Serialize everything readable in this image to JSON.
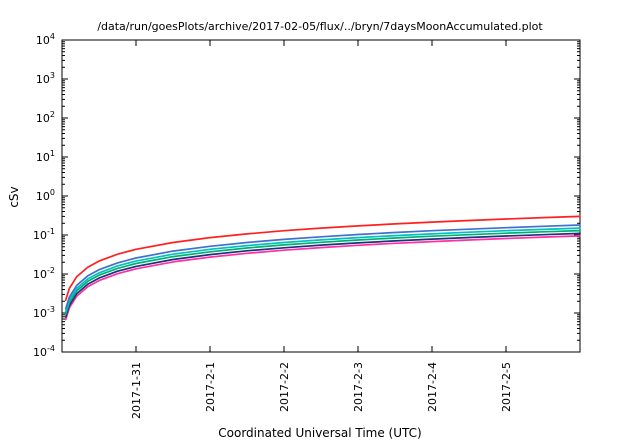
{
  "chart_data": {
    "type": "line",
    "title": "/data/run/goesPlots/archive/2017-02-05/flux/../bryn/7daysMoonAccumulated.plot",
    "xlabel": "Coordinated Universal Time (UTC)",
    "ylabel": "cSv",
    "y_scale": "log",
    "ylim_exponents": [
      -4,
      4
    ],
    "xlim_days": [
      0,
      7
    ],
    "grid": "off",
    "legend": "none",
    "yticks_exponents": [
      4,
      3,
      2,
      1,
      0,
      -1,
      -2,
      -3,
      -4
    ],
    "xticks": [
      {
        "pos": 1,
        "label": "2017-1-31"
      },
      {
        "pos": 2,
        "label": "2017-2-1"
      },
      {
        "pos": 3,
        "label": "2017-2-2"
      },
      {
        "pos": 4,
        "label": "2017-2-3"
      },
      {
        "pos": 5,
        "label": "2017-2-4"
      },
      {
        "pos": 6,
        "label": "2017-2-5"
      }
    ],
    "x_days": [
      0.05,
      0.1,
      0.2,
      0.35,
      0.5,
      0.75,
      1,
      1.5,
      2,
      2.5,
      3,
      3.5,
      4,
      4.5,
      5,
      5.5,
      6,
      6.5,
      7
    ],
    "series": [
      {
        "name": "red",
        "color": "#ff2020",
        "values": [
          0.00214,
          0.00429,
          0.00857,
          0.015,
          0.0214,
          0.0321,
          0.0429,
          0.0643,
          0.0857,
          0.107,
          0.129,
          0.15,
          0.171,
          0.193,
          0.214,
          0.236,
          0.257,
          0.279,
          0.3
        ]
      },
      {
        "name": "blue",
        "color": "#4070d0",
        "values": [
          0.00129,
          0.00257,
          0.00514,
          0.009,
          0.0129,
          0.0193,
          0.0257,
          0.0386,
          0.0514,
          0.0643,
          0.0771,
          0.09,
          0.103,
          0.116,
          0.129,
          0.141,
          0.154,
          0.167,
          0.18
        ]
      },
      {
        "name": "cyan",
        "color": "#00c0c0",
        "values": [
          0.00107,
          0.00214,
          0.00429,
          0.0075,
          0.0107,
          0.0161,
          0.0214,
          0.0321,
          0.0429,
          0.0536,
          0.0643,
          0.075,
          0.0857,
          0.0964,
          0.107,
          0.118,
          0.129,
          0.139,
          0.15
        ]
      },
      {
        "name": "green",
        "color": "#00b070",
        "values": [
          0.000929,
          0.00186,
          0.00371,
          0.0065,
          0.00929,
          0.0139,
          0.0186,
          0.0279,
          0.0371,
          0.0464,
          0.0557,
          0.065,
          0.0743,
          0.0836,
          0.0929,
          0.102,
          0.111,
          0.121,
          0.13
        ]
      },
      {
        "name": "navy",
        "color": "#203080",
        "values": [
          0.000786,
          0.00157,
          0.00314,
          0.0055,
          0.00786,
          0.0118,
          0.0157,
          0.0236,
          0.0314,
          0.0393,
          0.0471,
          0.055,
          0.0629,
          0.0707,
          0.0786,
          0.0864,
          0.0943,
          0.102,
          0.11
        ]
      },
      {
        "name": "magenta",
        "color": "#ff30a0",
        "values": [
          0.000679,
          0.00136,
          0.00271,
          0.00475,
          0.00679,
          0.0102,
          0.0136,
          0.0204,
          0.0271,
          0.0339,
          0.0407,
          0.0475,
          0.0543,
          0.0611,
          0.0679,
          0.0746,
          0.0814,
          0.0882,
          0.095
        ]
      }
    ]
  }
}
